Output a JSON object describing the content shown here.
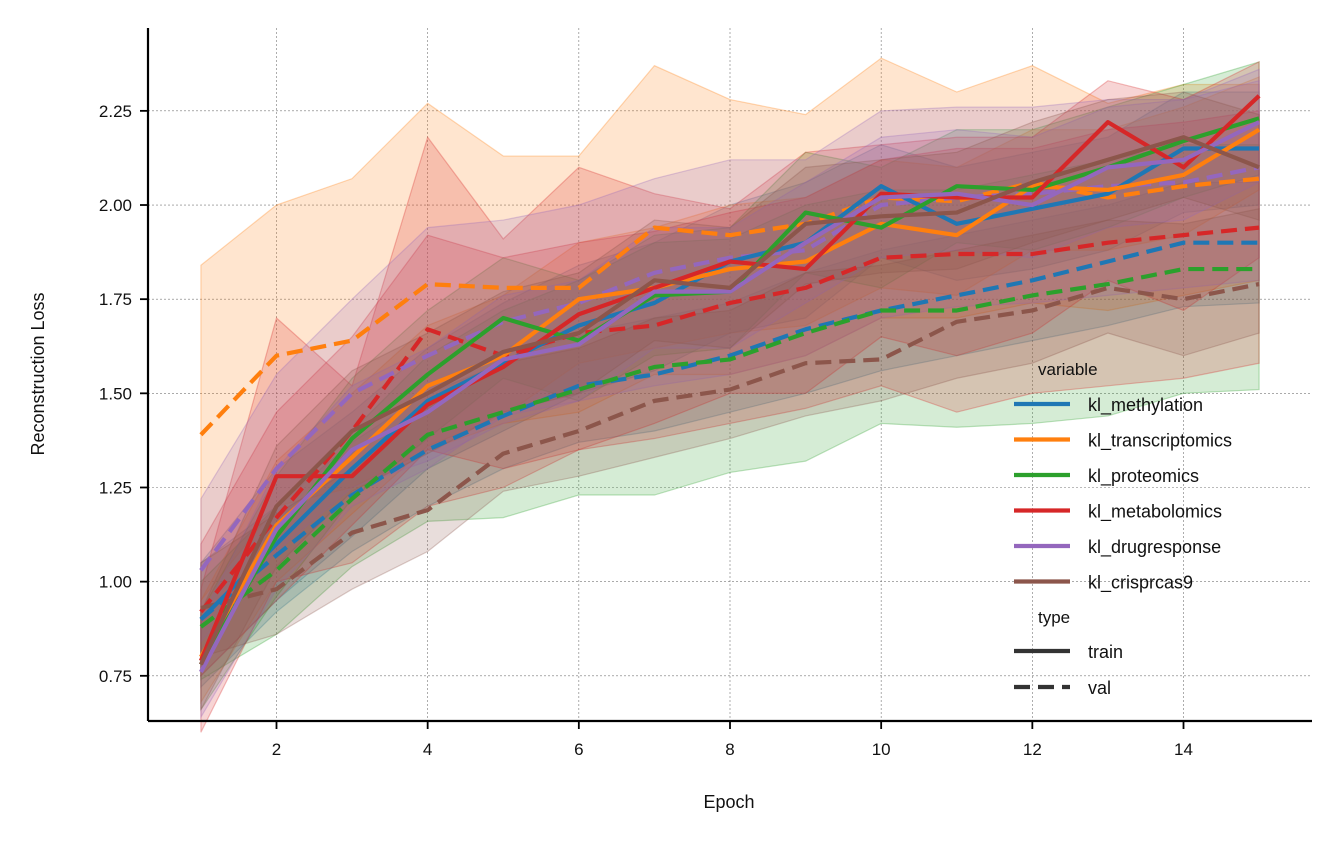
{
  "chart_data": {
    "type": "line",
    "xlabel": "Epoch",
    "ylabel": "Reconstruction Loss",
    "xlim": [
      0.3,
      15.7
    ],
    "ylim": [
      0.63,
      2.47
    ],
    "xticks": [
      2,
      4,
      6,
      8,
      10,
      12,
      14
    ],
    "yticks": [
      0.75,
      1.0,
      1.25,
      1.5,
      1.75,
      2.0,
      2.25
    ],
    "ytick_labels": [
      "0.75",
      "1.00",
      "1.25",
      "1.50",
      "1.75",
      "2.00",
      "2.25"
    ],
    "grid": true,
    "legend_placement": "lower-right",
    "legend": {
      "variable_title": "variable",
      "type_title": "type",
      "types": [
        {
          "label": "train",
          "dash": "solid"
        },
        {
          "label": "val",
          "dash": "dashed"
        }
      ]
    },
    "x": [
      1,
      2,
      3,
      4,
      5,
      6,
      7,
      8,
      9,
      10,
      11,
      12,
      13,
      14,
      15
    ],
    "series": [
      {
        "name": "kl_methylation",
        "color": "#1f77b4",
        "train": [
          0.9,
          1.1,
          1.3,
          1.48,
          1.58,
          1.68,
          1.74,
          1.85,
          1.9,
          2.05,
          1.95,
          1.99,
          2.03,
          2.15,
          2.15
        ],
        "train_band": [
          [
            0.75,
            1.05
          ],
          [
            0.95,
            1.3
          ],
          [
            1.12,
            1.45
          ],
          [
            1.3,
            1.62
          ],
          [
            1.4,
            1.74
          ],
          [
            1.5,
            1.84
          ],
          [
            1.56,
            1.9
          ],
          [
            1.66,
            2.0
          ],
          [
            1.7,
            2.06
          ],
          [
            1.86,
            2.16
          ],
          [
            1.8,
            2.1
          ],
          [
            1.83,
            2.14
          ],
          [
            1.88,
            2.18
          ],
          [
            1.98,
            2.3
          ],
          [
            2.0,
            2.3
          ]
        ],
        "val": [
          0.9,
          1.07,
          1.23,
          1.35,
          1.44,
          1.52,
          1.55,
          1.6,
          1.67,
          1.72,
          1.76,
          1.8,
          1.85,
          1.9,
          1.9
        ],
        "val_band": [
          [
            0.72,
            1.05
          ],
          [
            0.92,
            1.2
          ],
          [
            1.08,
            1.37
          ],
          [
            1.2,
            1.5
          ],
          [
            1.3,
            1.58
          ],
          [
            1.37,
            1.66
          ],
          [
            1.4,
            1.7
          ],
          [
            1.45,
            1.74
          ],
          [
            1.5,
            1.82
          ],
          [
            1.56,
            1.88
          ],
          [
            1.6,
            1.92
          ],
          [
            1.64,
            1.96
          ],
          [
            1.68,
            2.0
          ],
          [
            1.73,
            2.06
          ],
          [
            1.74,
            2.06
          ]
        ]
      },
      {
        "name": "kl_transcriptomics",
        "color": "#ff7f0e",
        "train": [
          0.8,
          1.15,
          1.33,
          1.52,
          1.6,
          1.75,
          1.78,
          1.83,
          1.85,
          1.95,
          1.92,
          2.05,
          2.04,
          2.08,
          2.2
        ],
        "train_band": [
          [
            0.68,
            0.95
          ],
          [
            1.0,
            1.32
          ],
          [
            1.18,
            1.5
          ],
          [
            1.36,
            1.68
          ],
          [
            1.44,
            1.76
          ],
          [
            1.58,
            1.9
          ],
          [
            1.62,
            1.94
          ],
          [
            1.66,
            2.0
          ],
          [
            1.68,
            2.02
          ],
          [
            1.78,
            2.12
          ],
          [
            1.76,
            2.1
          ],
          [
            1.88,
            2.2
          ],
          [
            1.88,
            2.2
          ],
          [
            1.92,
            2.26
          ],
          [
            2.04,
            2.34
          ]
        ],
        "val": [
          1.39,
          1.6,
          1.64,
          1.79,
          1.78,
          1.78,
          1.94,
          1.92,
          1.95,
          2.02,
          2.01,
          2.06,
          2.02,
          2.05,
          2.07
        ],
        "val_band": [
          [
            0.95,
            1.84
          ],
          [
            1.2,
            2.0
          ],
          [
            1.25,
            2.07
          ],
          [
            1.35,
            2.27
          ],
          [
            1.42,
            2.13
          ],
          [
            1.45,
            2.13
          ],
          [
            1.55,
            2.37
          ],
          [
            1.55,
            2.28
          ],
          [
            1.6,
            2.24
          ],
          [
            1.7,
            2.39
          ],
          [
            1.7,
            2.3
          ],
          [
            1.74,
            2.37
          ],
          [
            1.72,
            2.27
          ],
          [
            1.76,
            2.32
          ],
          [
            1.8,
            2.32
          ]
        ]
      },
      {
        "name": "kl_proteomics",
        "color": "#2ca02c",
        "train": [
          0.78,
          1.12,
          1.38,
          1.55,
          1.7,
          1.64,
          1.76,
          1.77,
          1.98,
          1.94,
          2.05,
          2.04,
          2.1,
          2.17,
          2.23
        ],
        "train_band": [
          [
            0.66,
            0.92
          ],
          [
            0.96,
            1.28
          ],
          [
            1.22,
            1.54
          ],
          [
            1.38,
            1.72
          ],
          [
            1.54,
            1.86
          ],
          [
            1.48,
            1.8
          ],
          [
            1.6,
            1.92
          ],
          [
            1.62,
            1.94
          ],
          [
            1.82,
            2.14
          ],
          [
            1.78,
            2.1
          ],
          [
            1.9,
            2.2
          ],
          [
            1.88,
            2.2
          ],
          [
            1.94,
            2.26
          ],
          [
            2.02,
            2.32
          ],
          [
            2.08,
            2.38
          ]
        ],
        "val": [
          0.88,
          1.03,
          1.22,
          1.39,
          1.45,
          1.51,
          1.57,
          1.59,
          1.66,
          1.72,
          1.72,
          1.76,
          1.79,
          1.83,
          1.83
        ],
        "val_band": [
          [
            0.74,
            1.0
          ],
          [
            0.86,
            1.2
          ],
          [
            1.04,
            1.4
          ],
          [
            1.16,
            1.6
          ],
          [
            1.17,
            1.72
          ],
          [
            1.23,
            1.8
          ],
          [
            1.23,
            1.9
          ],
          [
            1.29,
            1.91
          ],
          [
            1.32,
            2.0
          ],
          [
            1.42,
            2.04
          ],
          [
            1.41,
            2.04
          ],
          [
            1.42,
            2.08
          ],
          [
            1.44,
            2.12
          ],
          [
            1.5,
            2.16
          ],
          [
            1.51,
            2.16
          ]
        ]
      },
      {
        "name": "kl_metabolomics",
        "color": "#d62728",
        "train": [
          0.79,
          1.28,
          1.28,
          1.47,
          1.57,
          1.71,
          1.78,
          1.85,
          1.83,
          2.03,
          2.02,
          2.02,
          2.22,
          2.1,
          2.29
        ],
        "train_band": [
          [
            0.6,
            0.98
          ],
          [
            1.0,
            1.7
          ],
          [
            1.05,
            1.52
          ],
          [
            1.2,
            2.18
          ],
          [
            1.25,
            1.91
          ],
          [
            1.35,
            2.1
          ],
          [
            1.42,
            2.03
          ],
          [
            1.5,
            1.99
          ],
          [
            1.5,
            2.14
          ],
          [
            1.65,
            2.16
          ],
          [
            1.6,
            2.18
          ],
          [
            1.66,
            2.18
          ],
          [
            1.8,
            2.33
          ],
          [
            1.72,
            2.28
          ],
          [
            1.86,
            2.38
          ]
        ],
        "val": [
          0.92,
          1.17,
          1.4,
          1.67,
          1.6,
          1.66,
          1.68,
          1.74,
          1.78,
          1.86,
          1.87,
          1.87,
          1.9,
          1.92,
          1.94
        ],
        "val_band": [
          [
            0.75,
            1.1
          ],
          [
            0.95,
            1.45
          ],
          [
            1.15,
            1.65
          ],
          [
            1.35,
            1.92
          ],
          [
            1.3,
            1.86
          ],
          [
            1.35,
            1.9
          ],
          [
            1.38,
            1.93
          ],
          [
            1.42,
            1.98
          ],
          [
            1.46,
            2.02
          ],
          [
            1.52,
            2.12
          ],
          [
            1.45,
            2.15
          ],
          [
            1.5,
            2.15
          ],
          [
            1.52,
            2.2
          ],
          [
            1.54,
            2.22
          ],
          [
            1.58,
            2.25
          ]
        ]
      },
      {
        "name": "kl_drugresponse",
        "color": "#9467bd",
        "train": [
          0.76,
          1.14,
          1.35,
          1.45,
          1.59,
          1.63,
          1.77,
          1.77,
          1.9,
          2.02,
          2.03,
          2.0,
          2.1,
          2.12,
          2.22
        ],
        "train_band": [
          [
            0.64,
            0.9
          ],
          [
            0.98,
            1.3
          ],
          [
            1.2,
            1.52
          ],
          [
            1.3,
            1.62
          ],
          [
            1.44,
            1.76
          ],
          [
            1.48,
            1.8
          ],
          [
            1.62,
            1.94
          ],
          [
            1.62,
            1.94
          ],
          [
            1.74,
            2.06
          ],
          [
            1.86,
            2.18
          ],
          [
            1.88,
            2.2
          ],
          [
            1.86,
            2.18
          ],
          [
            1.94,
            2.26
          ],
          [
            1.96,
            2.28
          ],
          [
            2.06,
            2.36
          ]
        ],
        "val": [
          1.03,
          1.3,
          1.5,
          1.6,
          1.69,
          1.74,
          1.82,
          1.86,
          1.88,
          2.0,
          2.02,
          2.03,
          2.05,
          2.06,
          2.1
        ],
        "val_band": [
          [
            0.84,
            1.22
          ],
          [
            1.08,
            1.55
          ],
          [
            1.25,
            1.75
          ],
          [
            1.32,
            1.94
          ],
          [
            1.42,
            1.96
          ],
          [
            1.48,
            2.0
          ],
          [
            1.52,
            2.07
          ],
          [
            1.55,
            2.12
          ],
          [
            1.6,
            2.12
          ],
          [
            1.7,
            2.25
          ],
          [
            1.73,
            2.26
          ],
          [
            1.74,
            2.26
          ],
          [
            1.76,
            2.28
          ],
          [
            1.78,
            2.28
          ],
          [
            1.8,
            2.33
          ]
        ]
      },
      {
        "name": "kl_crisprcas9",
        "color": "#8c564b",
        "train": [
          0.78,
          1.2,
          1.4,
          1.5,
          1.61,
          1.66,
          1.8,
          1.78,
          1.95,
          1.97,
          1.98,
          2.06,
          2.12,
          2.18,
          2.1
        ],
        "train_band": [
          [
            0.66,
            0.92
          ],
          [
            1.04,
            1.36
          ],
          [
            1.24,
            1.56
          ],
          [
            1.34,
            1.66
          ],
          [
            1.45,
            1.77
          ],
          [
            1.5,
            1.82
          ],
          [
            1.64,
            1.96
          ],
          [
            1.62,
            1.94
          ],
          [
            1.79,
            2.1
          ],
          [
            1.82,
            2.12
          ],
          [
            1.83,
            2.14
          ],
          [
            1.9,
            2.22
          ],
          [
            1.96,
            2.28
          ],
          [
            2.02,
            2.3
          ],
          [
            1.96,
            2.24
          ]
        ],
        "val": [
          0.93,
          0.98,
          1.13,
          1.19,
          1.34,
          1.4,
          1.48,
          1.51,
          1.58,
          1.59,
          1.69,
          1.72,
          1.78,
          1.75,
          1.79
        ],
        "val_band": [
          [
            0.8,
            1.05
          ],
          [
            0.86,
            1.18
          ],
          [
            0.98,
            1.3
          ],
          [
            1.08,
            1.48
          ],
          [
            1.24,
            1.58
          ],
          [
            1.28,
            1.62
          ],
          [
            1.33,
            1.7
          ],
          [
            1.38,
            1.72
          ],
          [
            1.44,
            1.82
          ],
          [
            1.48,
            1.84
          ],
          [
            1.54,
            1.88
          ],
          [
            1.58,
            1.92
          ],
          [
            1.66,
            1.96
          ],
          [
            1.6,
            1.95
          ],
          [
            1.66,
            1.99
          ]
        ]
      }
    ]
  }
}
